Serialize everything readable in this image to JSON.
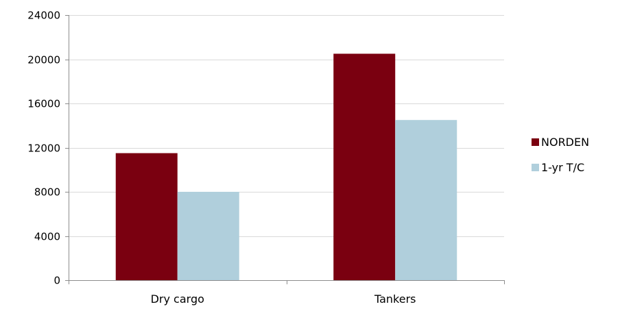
{
  "chart_data": {
    "type": "bar",
    "categories": [
      "Dry cargo",
      "Tankers"
    ],
    "series": [
      {
        "name": "NORDEN",
        "values": [
          11500,
          20500
        ],
        "color": "#7a0010"
      },
      {
        "name": "1-yr T/C",
        "values": [
          8000,
          14500
        ],
        "color": "#b0cfdc"
      }
    ],
    "ylim": [
      0,
      24000
    ],
    "yticks": [
      0,
      4000,
      8000,
      12000,
      16000,
      20000,
      24000
    ],
    "grid": true,
    "legend": "right",
    "title": "",
    "xlabel": "",
    "ylabel": ""
  }
}
